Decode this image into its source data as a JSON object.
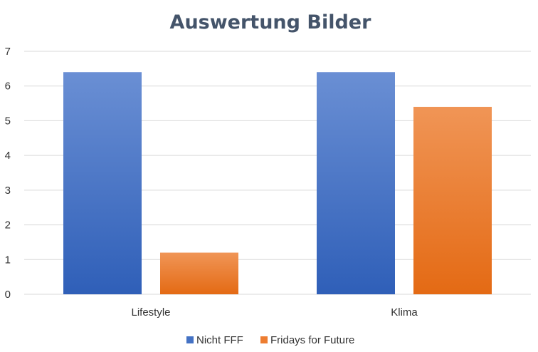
{
  "chart_data": {
    "type": "bar",
    "title": "Auswertung Bilder",
    "categories": [
      "Lifestyle",
      "Klima"
    ],
    "series": [
      {
        "name": "Nicht FFF",
        "values": [
          6.4,
          6.4
        ],
        "color": "#4472C4"
      },
      {
        "name": "Fridays for Future",
        "values": [
          1.2,
          5.4
        ],
        "color": "#ED7D31"
      }
    ],
    "yticks": [
      "0",
      "1",
      "2",
      "3",
      "4",
      "5",
      "6",
      "7"
    ],
    "ylim": [
      0,
      7
    ],
    "grid": true,
    "legend_position": "bottom"
  }
}
